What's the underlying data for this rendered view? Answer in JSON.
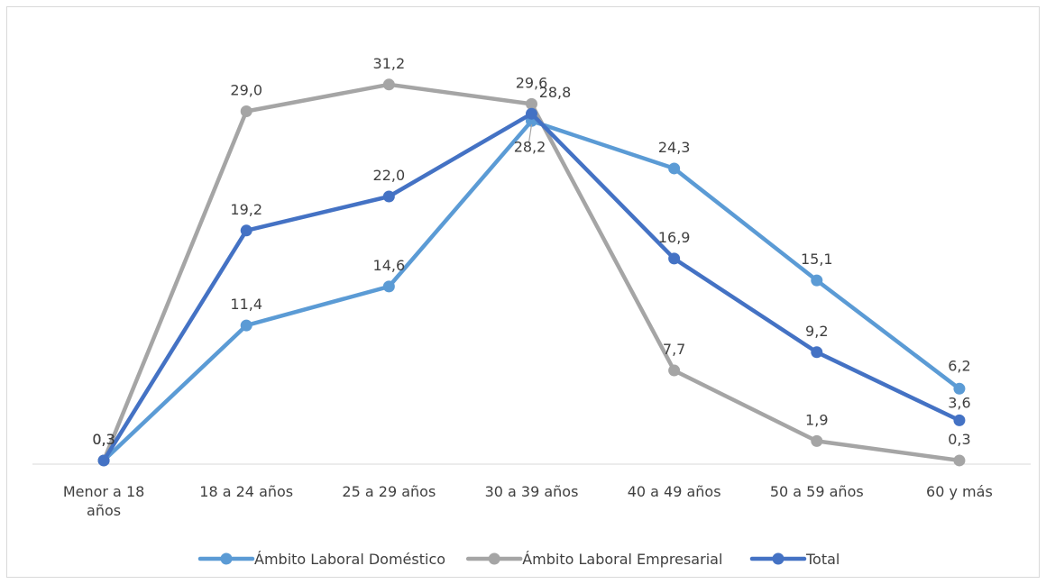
{
  "chart_data": {
    "type": "line",
    "title": "",
    "xlabel": "",
    "ylabel": "",
    "ylim": [
      0,
      33
    ],
    "grid": false,
    "legend_position": "bottom",
    "categories": [
      "Menor a 18 años",
      "18 a 24 años",
      "25 a 29 años",
      "30 a 39 años",
      "40 a 49 años",
      "50 a 59 años",
      "60 y más"
    ],
    "series": [
      {
        "name": "Ámbito Laboral Doméstico",
        "color": "#5B9BD5",
        "values": [
          0.3,
          11.4,
          14.6,
          28.2,
          24.3,
          15.1,
          6.2
        ],
        "labels": [
          "0,3",
          "11,4",
          "14,6",
          "28,2",
          "24,3",
          "15,1",
          "6,2"
        ]
      },
      {
        "name": "Ámbito Laboral Empresarial",
        "color": "#A5A5A5",
        "values": [
          0.3,
          29.0,
          31.2,
          29.6,
          7.7,
          1.9,
          0.3
        ],
        "labels": [
          "0,3",
          "29,0",
          "31,2",
          "29,6",
          "7,7",
          "1,9",
          "0,3"
        ]
      },
      {
        "name": "Total",
        "color": "#4472C4",
        "values": [
          0.3,
          19.2,
          22.0,
          28.8,
          16.9,
          9.2,
          3.6
        ],
        "labels": [
          "0,3",
          "19,2",
          "22,0",
          "28,8",
          "16,9",
          "9,2",
          "3,6"
        ]
      }
    ]
  }
}
